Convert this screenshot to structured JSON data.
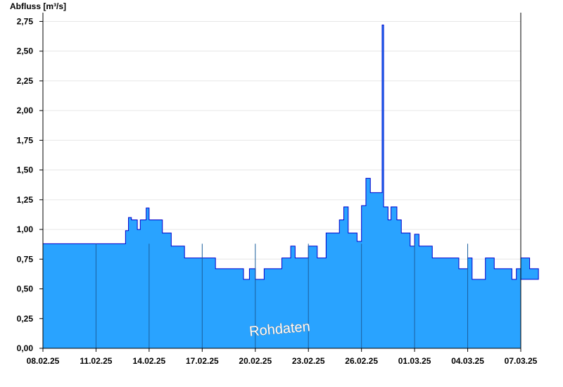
{
  "chart_data": {
    "type": "area",
    "ylabel": "Abfluss [m³/s]",
    "watermark": "Rohdaten",
    "ylim": [
      0,
      2.8
    ],
    "xlim": [
      "08.02.25",
      "07.03.25"
    ],
    "y_ticks": [
      "0,00",
      "0,25",
      "0,50",
      "0,75",
      "1,00",
      "1,25",
      "1,50",
      "1,75",
      "2,00",
      "2,25",
      "2,50",
      "2,75"
    ],
    "x_ticks": [
      "08.02.25",
      "11.02.25",
      "14.02.25",
      "17.02.25",
      "20.02.25",
      "23.02.25",
      "26.02.25",
      "01.03.25",
      "04.03.25",
      "07.03.25"
    ],
    "grid": true,
    "colors": {
      "fill": "#29a3ff",
      "line": "#0000cc",
      "grid": "#e6e6e6"
    },
    "series": [
      {
        "x": [
          "08.02.25 00:00",
          "11.02.25 00:00",
          "12.02.25 16:00",
          "12.02.25 20:00",
          "13.02.25 00:00",
          "13.02.25 08:00",
          "13.02.25 12:00",
          "13.02.25 20:00",
          "14.02.25 00:00",
          "14.02.25 18:00",
          "15.02.25 06:00",
          "16.02.25 00:00",
          "17.02.25 00:00",
          "17.02.25 18:00",
          "18.02.25 12:00",
          "19.02.25 08:00",
          "19.02.25 16:00",
          "20.02.25 00:00",
          "20.02.25 12:00",
          "21.02.25 06:00",
          "21.02.25 12:00",
          "22.02.25 00:00",
          "22.02.25 06:00",
          "23.02.25 00:00",
          "23.02.25 12:00",
          "24.02.25 00:00",
          "24.02.25 18:00",
          "25.02.25 00:00",
          "25.02.25 06:00",
          "25.02.25 18:00",
          "26.02.25 00:00",
          "26.02.25 06:00",
          "26.02.25 12:00",
          "27.02.25 00:00",
          "27.02.25 04:00",
          "27.02.25 06:00",
          "27.02.25 12:00",
          "27.02.25 16:00",
          "28.02.25 00:00",
          "28.02.25 06:00",
          "28.02.25 18:00",
          "01.03.25 00:00",
          "01.03.25 06:00",
          "02.03.25 00:00",
          "03.03.25 00:00",
          "03.03.25 12:00",
          "04.03.25 00:00",
          "04.03.25 06:00",
          "04.03.25 12:00",
          "05.03.25 00:00",
          "05.03.25 12:00",
          "06.03.25 00:00",
          "06.03.25 12:00",
          "06.03.25 18:00",
          "07.03.25 00:00",
          "07.03.25 12:00",
          "07.03.25 23:59"
        ],
        "y": [
          0.88,
          0.88,
          0.99,
          1.1,
          1.08,
          1.0,
          1.08,
          1.18,
          1.08,
          0.97,
          0.86,
          0.76,
          0.76,
          0.67,
          0.67,
          0.58,
          0.67,
          0.58,
          0.67,
          0.67,
          0.76,
          0.86,
          0.76,
          0.86,
          0.76,
          0.97,
          1.08,
          1.19,
          0.97,
          0.9,
          1.2,
          1.43,
          1.31,
          1.31,
          2.72,
          1.19,
          1.08,
          1.19,
          1.08,
          0.97,
          0.86,
          0.96,
          0.86,
          0.76,
          0.76,
          0.67,
          0.76,
          0.58,
          0.58,
          0.76,
          0.67,
          0.67,
          0.58,
          0.67,
          0.76,
          0.67,
          0.58
        ]
      }
    ]
  }
}
